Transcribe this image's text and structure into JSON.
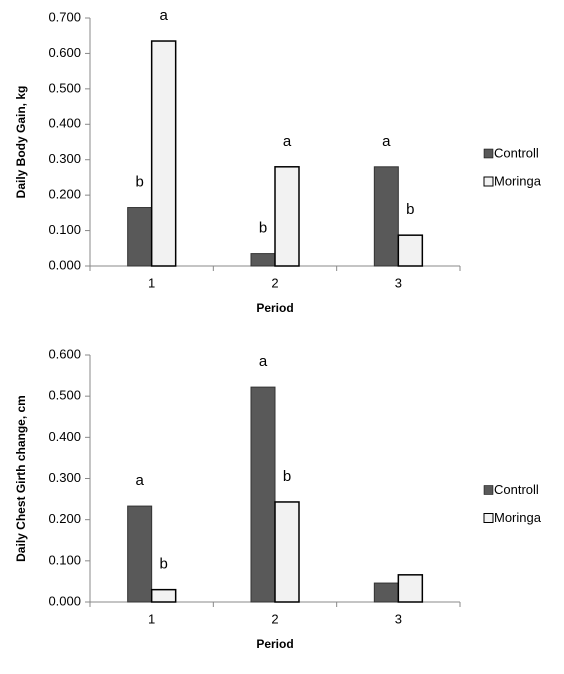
{
  "chart_data": [
    {
      "type": "bar",
      "x_label": "Period",
      "y_label": "Daily Body Gain, kg",
      "categories": [
        "1",
        "2",
        "3"
      ],
      "series": [
        {
          "name": "Controll",
          "color": "#595959",
          "values": [
            0.165,
            0.035,
            0.28
          ],
          "letters": [
            "b",
            "b",
            "a"
          ]
        },
        {
          "name": "Moringa",
          "color": "#f2f2f2",
          "values": [
            0.635,
            0.28,
            0.087
          ],
          "letters": [
            "a",
            "a",
            "b"
          ]
        }
      ],
      "ylim": [
        0,
        0.7
      ],
      "yticks": [
        {
          "value": 0,
          "label": "0.000"
        },
        {
          "value": 0.1,
          "label": "0.100"
        },
        {
          "value": 0.2,
          "label": "0.200"
        },
        {
          "value": 0.3,
          "label": "0.300"
        },
        {
          "value": 0.4,
          "label": "0.400"
        },
        {
          "value": 0.5,
          "label": "0.500"
        },
        {
          "value": 0.6,
          "label": "0.600"
        },
        {
          "value": 0.7,
          "label": "0.700"
        }
      ],
      "legend": "right"
    },
    {
      "type": "bar",
      "x_label": "Period",
      "y_label": "Daily Chest Girth change, cm",
      "categories": [
        "1",
        "2",
        "3"
      ],
      "series": [
        {
          "name": "Controll",
          "color": "#595959",
          "values": [
            0.233,
            0.522,
            0.046
          ],
          "letters": [
            "a",
            "a",
            null
          ]
        },
        {
          "name": "Moringa",
          "color": "#f2f2f2",
          "values": [
            0.03,
            0.243,
            0.066
          ],
          "letters": [
            "b",
            "b",
            null
          ]
        }
      ],
      "ylim": [
        0,
        0.6
      ],
      "yticks": [
        {
          "value": 0,
          "label": "0.000"
        },
        {
          "value": 0.1,
          "label": "0.100"
        },
        {
          "value": 0.2,
          "label": "0.200"
        },
        {
          "value": 0.3,
          "label": "0.300"
        },
        {
          "value": 0.4,
          "label": "0.400"
        },
        {
          "value": 0.5,
          "label": "0.500"
        },
        {
          "value": 0.6,
          "label": "0.600"
        }
      ],
      "legend": "right"
    }
  ]
}
